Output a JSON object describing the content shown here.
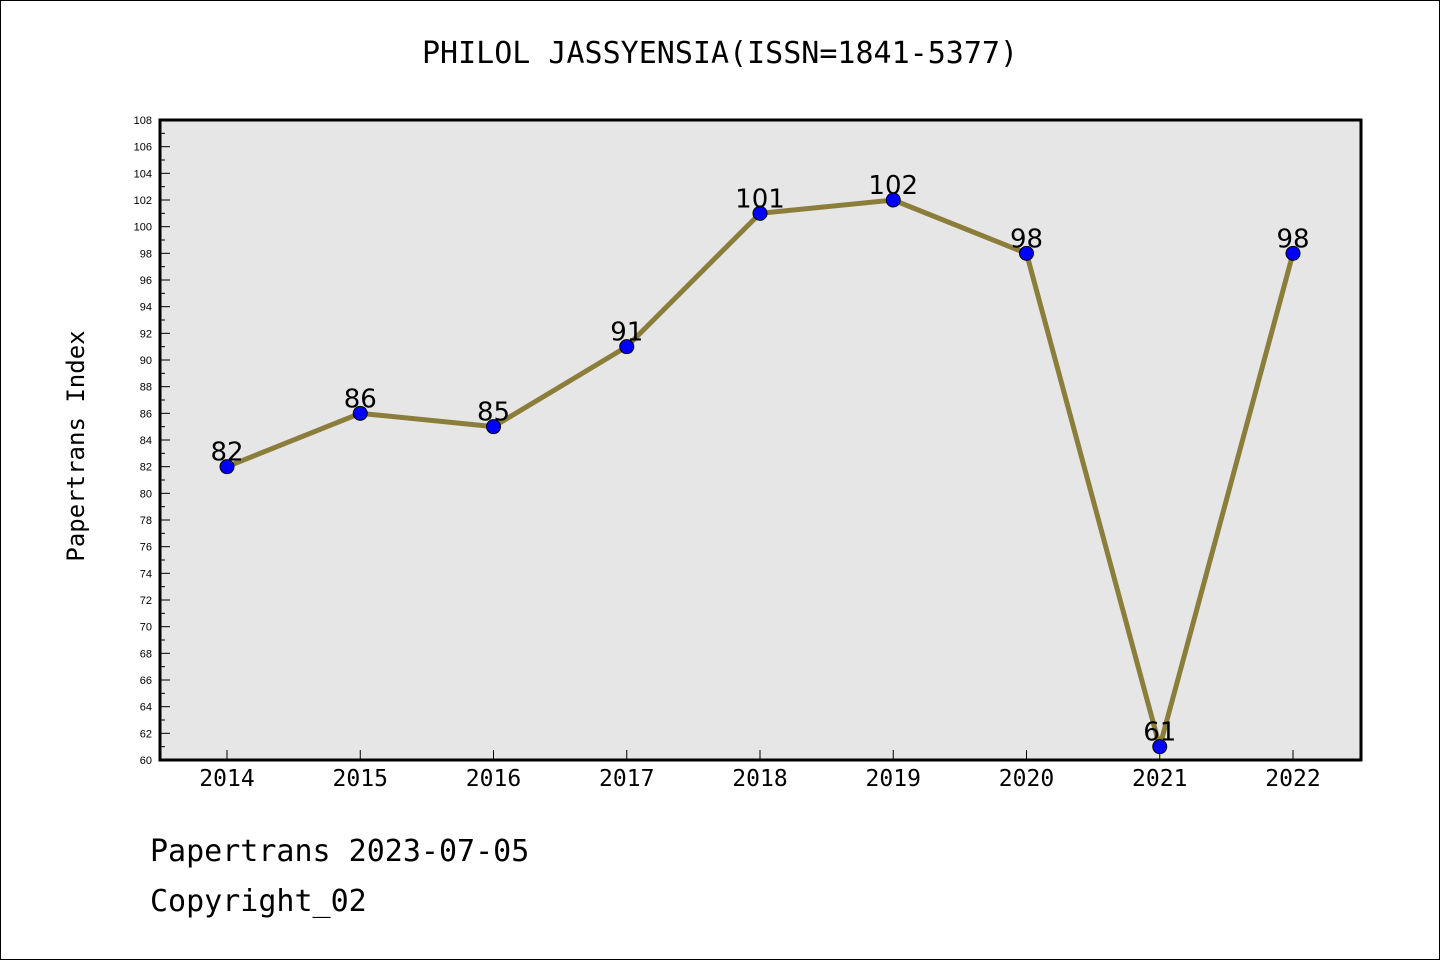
{
  "header": {
    "title": "PHILOL JASSYENSIA(ISSN=1841-5377)"
  },
  "footer": {
    "line1": "Papertrans 2023-07-05",
    "line2": "Copyright_02"
  },
  "chart_data": {
    "type": "line",
    "title": "PHILOL JASSYENSIA(ISSN=1841-5377)",
    "xlabel": "",
    "ylabel": "Papertrans Index",
    "categories": [
      "2014",
      "2015",
      "2016",
      "2017",
      "2018",
      "2019",
      "2020",
      "2021",
      "2022"
    ],
    "series": [
      {
        "values": [
          82,
          86,
          85,
          91,
          101,
          102,
          98,
          61,
          98
        ]
      }
    ],
    "ylim": [
      60,
      108
    ],
    "ytick_step": 2,
    "grid": false,
    "legend": "none",
    "colors": {
      "line": "#8B7D3A",
      "marker": "#0000FF",
      "plot_bg": "#E6E6E6"
    }
  }
}
